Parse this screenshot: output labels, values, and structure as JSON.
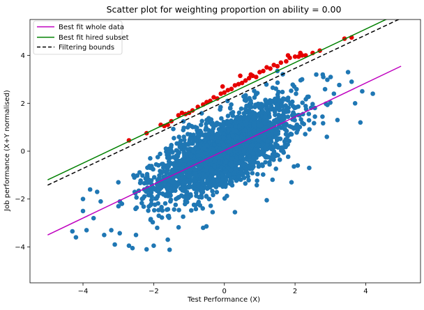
{
  "chart_data": {
    "type": "scatter",
    "title": "Scatter plot for weighting proportion on ability = 0.00",
    "xlabel": "Test Performance (X)",
    "ylabel": "Job performance (X+Y normalised)",
    "xlim": [
      -5.5,
      5.55
    ],
    "ylim": [
      -5.5,
      5.5
    ],
    "x_ticks": [
      -4,
      -2,
      0,
      2,
      4
    ],
    "y_ticks": [
      -4,
      -2,
      0,
      2,
      4
    ],
    "grid": false,
    "legend_position": "upper-left",
    "colors": {
      "whole_data_points": "#1f77b4",
      "hired_subset_points": "#e60000",
      "best_fit_whole": "#bf00bf",
      "best_fit_hired": "#008000",
      "filtering_bounds": "#000000"
    },
    "series": [
      {
        "name": "Best fit whole data",
        "kind": "line",
        "x": [
          -5,
          5
        ],
        "y": [
          -3.5,
          3.55
        ]
      },
      {
        "name": "Best fit hired subset",
        "kind": "line",
        "x": [
          -5,
          5
        ],
        "y": [
          -1.2,
          5.8
        ]
      },
      {
        "name": "Filtering bounds",
        "kind": "dashed-line",
        "x": [
          -5,
          5
        ],
        "y": [
          -1.42,
          5.55
        ]
      },
      {
        "kind": "scatter",
        "role": "whole data",
        "cloud": {
          "slope": 0.71,
          "intercept": 0.0,
          "x_mean": 0,
          "x_sd": 1.0,
          "y_residual_sd": 0.72,
          "n": 2400
        },
        "outliers": [
          [
            -4.3,
            -3.35
          ],
          [
            -4.2,
            -3.6
          ],
          [
            -4.0,
            -2.0
          ],
          [
            -3.9,
            -3.3
          ],
          [
            -3.7,
            -2.8
          ],
          [
            -3.6,
            -1.7
          ],
          [
            -3.4,
            -3.5
          ],
          [
            -3.2,
            -3.3
          ],
          [
            -3.1,
            -3.9
          ],
          [
            -2.9,
            -2.2
          ],
          [
            -2.7,
            -3.95
          ],
          [
            -2.6,
            -4.05
          ],
          [
            -2.2,
            -4.1
          ],
          [
            -2.0,
            -3.95
          ],
          [
            -1.6,
            -3.7
          ],
          [
            -3.8,
            -1.6
          ],
          [
            -3.5,
            -2.1
          ],
          [
            -3.0,
            -1.3
          ],
          [
            -2.5,
            -3.5
          ],
          [
            -1.9,
            -3.2
          ],
          [
            2.2,
            3.0
          ],
          [
            2.6,
            3.2
          ],
          [
            2.8,
            3.1
          ],
          [
            3.1,
            2.4
          ],
          [
            3.5,
            3.3
          ],
          [
            3.7,
            2.0
          ],
          [
            3.9,
            2.5
          ],
          [
            3.85,
            1.2
          ],
          [
            3.6,
            2.9
          ],
          [
            4.2,
            2.4
          ],
          [
            3.2,
            1.3
          ],
          [
            2.9,
            0.6
          ],
          [
            2.4,
            -0.7
          ],
          [
            1.9,
            -1.3
          ],
          [
            1.2,
            -2.05
          ],
          [
            0.3,
            -2.55
          ],
          [
            -0.5,
            1.3
          ],
          [
            -1.0,
            1.1
          ],
          [
            -0.6,
            -3.2
          ],
          [
            1.5,
            3.35
          ]
        ]
      },
      {
        "kind": "scatter",
        "role": "hired subset",
        "points": [
          [
            -2.7,
            0.45
          ],
          [
            -2.2,
            0.75
          ],
          [
            -1.8,
            1.1
          ],
          [
            -1.7,
            1.05
          ],
          [
            -1.6,
            1.1
          ],
          [
            -1.5,
            1.25
          ],
          [
            -1.3,
            1.5
          ],
          [
            -1.1,
            1.55
          ],
          [
            -1.0,
            1.6
          ],
          [
            -0.9,
            1.7
          ],
          [
            -0.75,
            1.85
          ],
          [
            -0.6,
            1.95
          ],
          [
            -0.5,
            2.05
          ],
          [
            -0.4,
            2.1
          ],
          [
            -0.3,
            2.25
          ],
          [
            -0.2,
            2.2
          ],
          [
            -0.1,
            2.4
          ],
          [
            0.0,
            2.45
          ],
          [
            0.1,
            2.55
          ],
          [
            0.2,
            2.6
          ],
          [
            0.3,
            2.75
          ],
          [
            0.4,
            2.8
          ],
          [
            0.5,
            2.85
          ],
          [
            0.6,
            2.95
          ],
          [
            0.7,
            3.05
          ],
          [
            0.8,
            3.15
          ],
          [
            0.9,
            3.1
          ],
          [
            1.0,
            3.3
          ],
          [
            1.1,
            3.35
          ],
          [
            1.2,
            3.5
          ],
          [
            1.3,
            3.45
          ],
          [
            1.4,
            3.6
          ],
          [
            1.5,
            3.55
          ],
          [
            1.6,
            3.7
          ],
          [
            1.75,
            3.75
          ],
          [
            1.85,
            3.9
          ],
          [
            2.0,
            3.95
          ],
          [
            2.1,
            3.95
          ],
          [
            2.2,
            4.0
          ],
          [
            2.3,
            4.0
          ],
          [
            2.5,
            4.1
          ],
          [
            2.7,
            4.2
          ],
          [
            3.4,
            4.7
          ],
          [
            3.6,
            4.75
          ],
          [
            0.45,
            3.15
          ],
          [
            0.75,
            3.2
          ],
          [
            -0.05,
            2.7
          ],
          [
            1.8,
            4.0
          ],
          [
            2.15,
            4.1
          ],
          [
            -1.2,
            1.6
          ]
        ]
      }
    ]
  }
}
